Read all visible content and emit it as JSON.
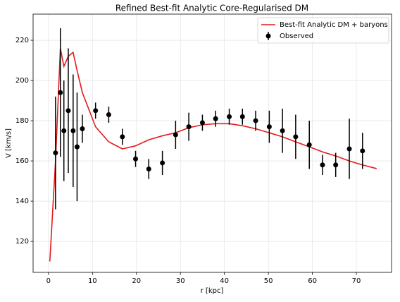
{
  "chart_data": {
    "type": "line",
    "title": "Refined Best-fit Analytic Core-Regularised DM",
    "xlabel": "r [kpc]",
    "ylabel": "V [km/s]",
    "xlim": [
      -3.5,
      78
    ],
    "ylim": [
      104.6,
      233
    ],
    "xticks": [
      0,
      10,
      20,
      30,
      40,
      50,
      60,
      70
    ],
    "yticks": [
      120,
      140,
      160,
      180,
      200,
      220
    ],
    "grid": true,
    "legend": "upper right",
    "series": [
      {
        "name": "Best-fit Analytic DM + baryons",
        "color": "#e31a1c",
        "type": "line",
        "x": [
          0.3,
          1.6,
          2.7,
          3.5,
          4.5,
          5.6,
          6.5,
          7.7,
          10.7,
          13.7,
          16.8,
          19.8,
          22.8,
          25.9,
          28.9,
          31.9,
          35.0,
          38.0,
          41.1,
          44.1,
          47.1,
          50.2,
          53.2,
          56.2,
          59.3,
          62.3,
          65.3,
          68.4,
          71.4,
          74.6
        ],
        "values": [
          110,
          160,
          216,
          207,
          212,
          214,
          205,
          194,
          177,
          169.5,
          166,
          167.5,
          170.5,
          172.5,
          174,
          176.5,
          178,
          178.5,
          178.5,
          177.5,
          176,
          174,
          172,
          169.5,
          167,
          164.5,
          162.5,
          160,
          158,
          156.2
        ]
      },
      {
        "name": "Observed",
        "color": "#000000",
        "type": "errorbar",
        "x": [
          1.6,
          2.7,
          3.5,
          4.5,
          5.6,
          6.5,
          7.7,
          10.7,
          13.7,
          16.8,
          19.8,
          22.8,
          25.9,
          28.9,
          31.9,
          35.0,
          38.0,
          41.1,
          44.1,
          47.1,
          50.2,
          53.2,
          56.2,
          59.3,
          62.3,
          65.3,
          68.4,
          71.4
        ],
        "values": [
          164,
          194,
          175,
          185,
          175,
          167,
          176,
          185,
          183,
          172,
          161,
          156,
          159,
          173,
          177,
          179,
          181,
          182,
          182,
          180,
          177,
          175,
          172,
          168,
          158,
          158,
          166,
          165
        ],
        "errors": [
          28,
          32,
          25,
          31,
          28,
          27,
          7,
          4,
          4,
          4,
          4,
          5,
          6,
          7,
          7,
          4,
          4,
          4,
          4,
          5,
          8,
          11,
          11,
          12,
          5,
          6,
          15,
          9
        ]
      }
    ]
  }
}
